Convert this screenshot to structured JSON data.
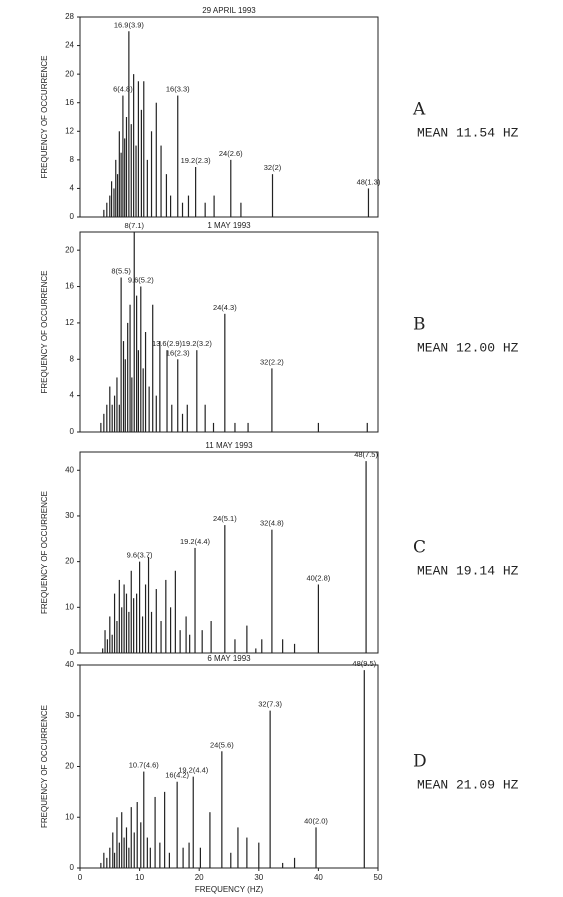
{
  "chart_data": [
    {
      "type": "stem",
      "title": "29 APRIL 1993",
      "ylabel": "FREQUENCY OF OCCURRENCE",
      "panel_label": "A",
      "mean_label": "MEAN 11.54 HZ",
      "color": "#222222",
      "xlim": [
        0,
        50
      ],
      "ylim": [
        0,
        28
      ],
      "yticks": [
        0,
        4,
        8,
        12,
        16,
        20,
        24,
        28
      ],
      "x": [
        4,
        4.5,
        5,
        5.3,
        5.7,
        6,
        6.3,
        6.6,
        6.9,
        7.2,
        7.5,
        7.8,
        8.2,
        8.6,
        9,
        9.4,
        9.8,
        10.3,
        10.7,
        11.3,
        12,
        12.8,
        13.6,
        14.5,
        15.2,
        16.4,
        17.2,
        18.2,
        19.4,
        21,
        22.5,
        25.3,
        27,
        32.3,
        48.4
      ],
      "values": [
        1,
        2,
        3,
        5,
        4,
        8,
        6,
        12,
        9,
        17,
        11,
        14,
        26,
        13,
        20,
        10,
        19,
        15,
        19,
        8,
        12,
        16,
        10,
        6,
        3,
        17,
        2,
        3,
        7,
        2,
        3,
        8,
        2,
        6,
        4
      ],
      "annotations": [
        {
          "text": "6(4.8)",
          "x": 7.2
        },
        {
          "text": "16.9(3.9)",
          "x": 8.2
        },
        {
          "text": "16(3.3)",
          "x": 16.4
        },
        {
          "text": "19.2(2.3)",
          "x": 19.4
        },
        {
          "text": "24(2.6)",
          "x": 25.3
        },
        {
          "text": "32(2)",
          "x": 32.3
        },
        {
          "text": "48(1.3)",
          "x": 48.4
        }
      ]
    },
    {
      "type": "stem",
      "title": "1 MAY 1993",
      "ylabel": "FREQUENCY OF OCCURRENCE",
      "panel_label": "B",
      "mean_label": "MEAN 12.00 HZ",
      "color": "#222222",
      "xlim": [
        0,
        50
      ],
      "ylim": [
        0,
        22
      ],
      "yticks": [
        0,
        4,
        8,
        12,
        16,
        20
      ],
      "x": [
        3.5,
        4,
        4.5,
        5,
        5.4,
        5.8,
        6.2,
        6.6,
        6.9,
        7.3,
        7.6,
        8,
        8.4,
        8.7,
        9.1,
        9.5,
        9.8,
        10.2,
        10.6,
        11,
        11.6,
        12.2,
        12.8,
        13.4,
        14.6,
        15.4,
        16.4,
        17.2,
        18,
        19.6,
        21,
        22.4,
        24.3,
        26,
        28.2,
        32.2,
        40,
        48.2
      ],
      "values": [
        1,
        2,
        3,
        5,
        3,
        4,
        6,
        3,
        17,
        10,
        8,
        12,
        14,
        6,
        22,
        15,
        9,
        16,
        7,
        11,
        5,
        14,
        4,
        10,
        9,
        3,
        8,
        2,
        3,
        9,
        3,
        1,
        13,
        1,
        1,
        7,
        1,
        1
      ],
      "annotations": [
        {
          "text": "8(5.5)",
          "x": 6.9
        },
        {
          "text": "8(7.1)",
          "x": 9.1
        },
        {
          "text": "9.6(5.2)",
          "x": 10.2
        },
        {
          "text": "13.6(2.9)",
          "x": 14.6
        },
        {
          "text": "16(2.3)",
          "x": 16.4
        },
        {
          "text": "19.2(3.2)",
          "x": 19.6
        },
        {
          "text": "24(4.3)",
          "x": 24.3
        },
        {
          "text": "32(2.2)",
          "x": 32.2
        }
      ]
    },
    {
      "type": "stem",
      "title": "11 MAY 1993",
      "ylabel": "FREQUENCY OF OCCURRENCE",
      "panel_label": "C",
      "mean_label": "MEAN 19.14 HZ",
      "color": "#222222",
      "xlim": [
        0,
        50
      ],
      "ylim": [
        0,
        44
      ],
      "yticks": [
        0,
        10,
        20,
        30,
        40
      ],
      "x": [
        3.8,
        4.2,
        4.6,
        5,
        5.4,
        5.8,
        6.2,
        6.6,
        7,
        7.4,
        7.8,
        8.2,
        8.6,
        9,
        9.5,
        10,
        10.5,
        11,
        11.5,
        12,
        12.8,
        13.6,
        14.4,
        15.2,
        16,
        16.8,
        17.8,
        18.4,
        19.3,
        20.5,
        22,
        24.3,
        26,
        28,
        29.5,
        30.5,
        32.2,
        34,
        36,
        40,
        48
      ],
      "values": [
        1,
        5,
        3,
        8,
        4,
        13,
        7,
        16,
        10,
        15,
        13,
        9,
        18,
        12,
        13,
        20,
        8,
        15,
        21,
        9,
        14,
        7,
        16,
        10,
        18,
        5,
        8,
        4,
        23,
        5,
        7,
        28,
        3,
        6,
        1,
        3,
        27,
        3,
        2,
        15,
        42
      ],
      "annotations": [
        {
          "text": "9.6(3.7)",
          "x": 10
        },
        {
          "text": "19.2(4.4)",
          "x": 19.3
        },
        {
          "text": "24(5.1)",
          "x": 24.3
        },
        {
          "text": "32(4.8)",
          "x": 32.2
        },
        {
          "text": "40(2.8)",
          "x": 40
        },
        {
          "text": "48(7.5)",
          "x": 48
        }
      ]
    },
    {
      "type": "stem",
      "title": "6 MAY 1993",
      "ylabel": "FREQUENCY OF OCCURRENCE",
      "xlabel": "FREQUENCY (HZ)",
      "panel_label": "D",
      "mean_label": "MEAN 21.09 HZ",
      "color": "#222222",
      "xlim": [
        0,
        50
      ],
      "xticks": [
        0,
        10,
        20,
        30,
        40,
        50
      ],
      "ylim": [
        0,
        40
      ],
      "yticks": [
        0,
        10,
        20,
        30,
        40
      ],
      "x": [
        3.5,
        4,
        4.5,
        5,
        5.5,
        5.8,
        6.2,
        6.6,
        7,
        7.4,
        7.8,
        8.2,
        8.6,
        9.1,
        9.6,
        10.2,
        10.7,
        11.3,
        11.8,
        12.6,
        13.4,
        14.2,
        15,
        16.3,
        17.3,
        18.3,
        19,
        20.2,
        21.8,
        23.8,
        25.3,
        26.5,
        28,
        30,
        31.9,
        34,
        36,
        39.6,
        47.7
      ],
      "values": [
        1,
        3,
        2,
        4,
        7,
        3,
        10,
        5,
        11,
        6,
        8,
        4,
        12,
        7,
        13,
        9,
        19,
        6,
        4,
        14,
        5,
        15,
        3,
        17,
        4,
        5,
        18,
        4,
        11,
        23,
        3,
        8,
        6,
        5,
        31,
        1,
        2,
        8,
        39
      ],
      "annotations": [
        {
          "text": "10.7(4.6)",
          "x": 10.7
        },
        {
          "text": "16(4.2)",
          "x": 16.3
        },
        {
          "text": "19.2(4.4)",
          "x": 19
        },
        {
          "text": "24(5.6)",
          "x": 23.8
        },
        {
          "text": "32(7.3)",
          "x": 31.9
        },
        {
          "text": "40(2.0)",
          "x": 39.6
        },
        {
          "text": "48(9.5)",
          "x": 47.7
        }
      ]
    }
  ]
}
